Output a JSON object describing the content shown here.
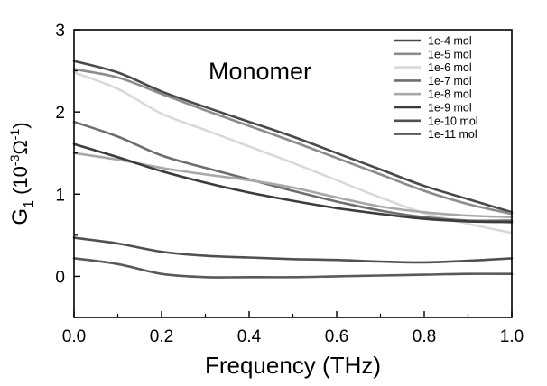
{
  "chart_data": {
    "type": "line",
    "title": "",
    "annotation": "Monomer",
    "xlabel": "Frequency (THz)",
    "ylabel": {
      "base": "G",
      "sub": "1",
      "open": " (10",
      "exp1": "-3",
      "omega": "Ω",
      "exp2": "-1",
      "close": ")"
    },
    "xlim": [
      0.0,
      1.0
    ],
    "ylim": [
      -0.5,
      3.0
    ],
    "xticks": [
      "0.0",
      "0.2",
      "0.4",
      "0.6",
      "0.8",
      "1.0"
    ],
    "yticks": [
      "0",
      "1",
      "2",
      "3"
    ],
    "legend_position": "top-right",
    "grid": false,
    "x": [
      0.0,
      0.1,
      0.2,
      0.3,
      0.4,
      0.5,
      0.6,
      0.7,
      0.8,
      0.9,
      1.0
    ],
    "series": [
      {
        "name": "1e-4 mol",
        "color": "#4a4a4a",
        "values": [
          2.62,
          2.48,
          2.25,
          2.06,
          1.88,
          1.7,
          1.5,
          1.3,
          1.1,
          0.94,
          0.78
        ]
      },
      {
        "name": "1e-5 mol",
        "color": "#8c8c8c",
        "values": [
          2.52,
          2.42,
          2.22,
          2.02,
          1.83,
          1.64,
          1.44,
          1.24,
          1.04,
          0.88,
          0.76
        ]
      },
      {
        "name": "1e-6 mol",
        "color": "#d9d9d9",
        "values": [
          2.48,
          2.28,
          1.98,
          1.78,
          1.58,
          1.38,
          1.17,
          0.96,
          0.77,
          0.64,
          0.53
        ]
      },
      {
        "name": "1e-7 mol",
        "color": "#6e6e6e",
        "values": [
          1.88,
          1.7,
          1.47,
          1.32,
          1.18,
          1.04,
          0.91,
          0.8,
          0.72,
          0.68,
          0.68
        ]
      },
      {
        "name": "1e-8 mol",
        "color": "#a8a8a8",
        "values": [
          1.5,
          1.42,
          1.32,
          1.24,
          1.17,
          1.08,
          0.96,
          0.85,
          0.78,
          0.74,
          0.72
        ]
      },
      {
        "name": "1e-9 mol",
        "color": "#3c3c3c",
        "values": [
          1.61,
          1.45,
          1.28,
          1.14,
          1.02,
          0.92,
          0.83,
          0.76,
          0.7,
          0.67,
          0.66
        ]
      },
      {
        "name": "1e-10 mol",
        "color": "#505050",
        "values": [
          0.47,
          0.4,
          0.3,
          0.25,
          0.23,
          0.21,
          0.2,
          0.18,
          0.17,
          0.19,
          0.22
        ]
      },
      {
        "name": "1e-11 mol",
        "color": "#5a5a5a",
        "values": [
          0.22,
          0.15,
          0.03,
          -0.01,
          -0.01,
          -0.01,
          0.0,
          0.01,
          0.02,
          0.03,
          0.03
        ]
      }
    ]
  }
}
